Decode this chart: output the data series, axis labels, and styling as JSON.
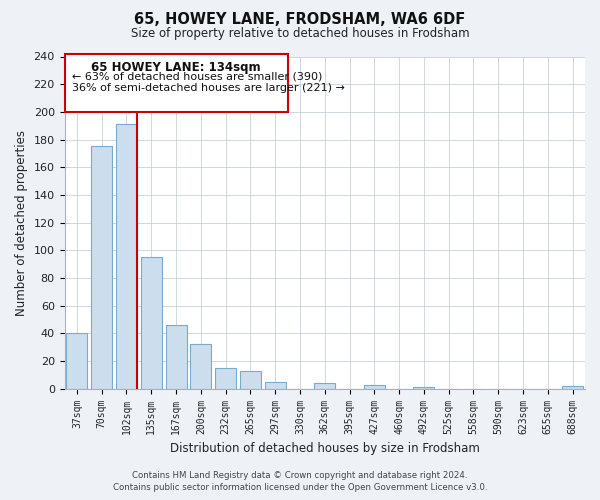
{
  "title": "65, HOWEY LANE, FRODSHAM, WA6 6DF",
  "subtitle": "Size of property relative to detached houses in Frodsham",
  "xlabel": "Distribution of detached houses by size in Frodsham",
  "ylabel": "Number of detached properties",
  "bin_labels": [
    "37sqm",
    "70sqm",
    "102sqm",
    "135sqm",
    "167sqm",
    "200sqm",
    "232sqm",
    "265sqm",
    "297sqm",
    "330sqm",
    "362sqm",
    "395sqm",
    "427sqm",
    "460sqm",
    "492sqm",
    "525sqm",
    "558sqm",
    "590sqm",
    "623sqm",
    "655sqm",
    "688sqm"
  ],
  "bar_heights": [
    40,
    175,
    191,
    95,
    46,
    32,
    15,
    13,
    5,
    0,
    4,
    0,
    3,
    0,
    1,
    0,
    0,
    0,
    0,
    0,
    2
  ],
  "bar_color": "#ccdded",
  "bar_edge_color": "#7aabcc",
  "property_line_color": "#cc0000",
  "ylim": [
    0,
    240
  ],
  "yticks": [
    0,
    20,
    40,
    60,
    80,
    100,
    120,
    140,
    160,
    180,
    200,
    220,
    240
  ],
  "annotation_title": "65 HOWEY LANE: 134sqm",
  "annotation_line1": "← 63% of detached houses are smaller (390)",
  "annotation_line2": "36% of semi-detached houses are larger (221) →",
  "footer_line1": "Contains HM Land Registry data © Crown copyright and database right 2024.",
  "footer_line2": "Contains public sector information licensed under the Open Government Licence v3.0.",
  "background_color": "#eef2f7",
  "plot_bg_color": "#ffffff",
  "grid_color": "#c8d0da"
}
